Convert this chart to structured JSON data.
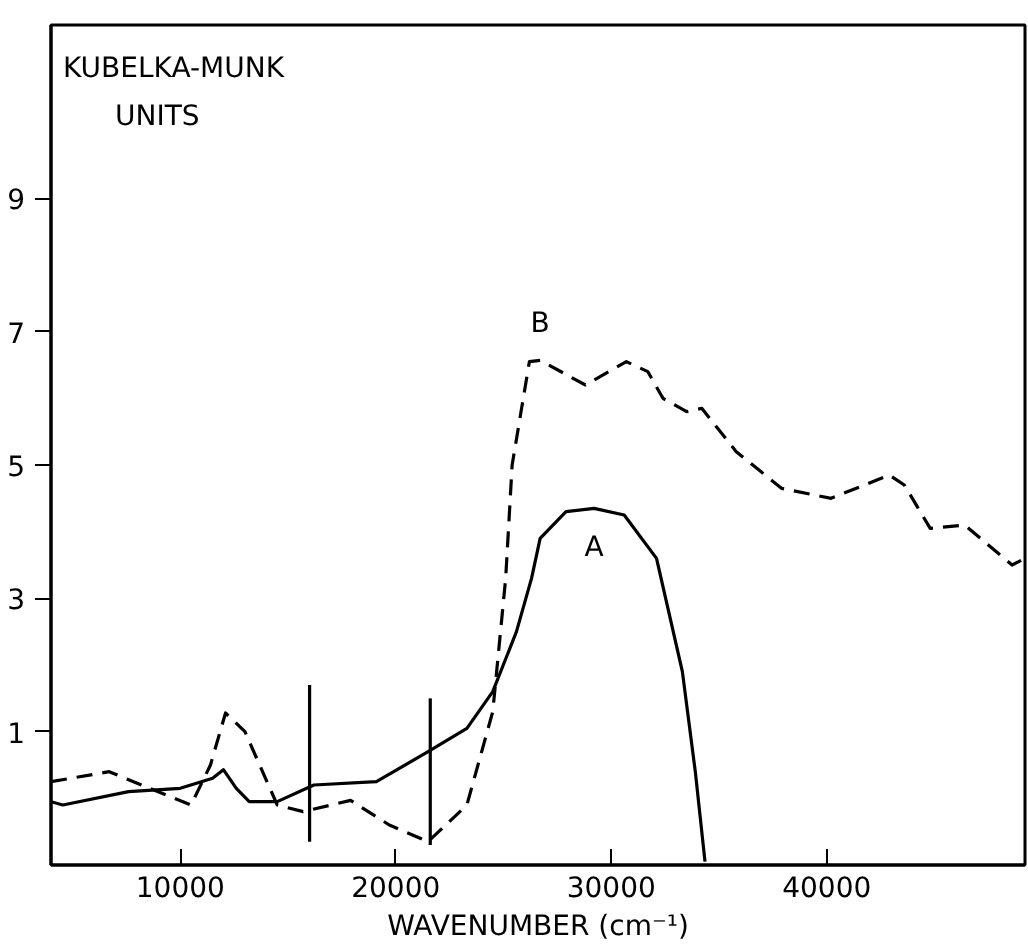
{
  "chart_data": {
    "type": "line",
    "xlabel": "WAVENUMBER (cm⁻¹)",
    "ylabel": "KUBELKA-MUNK UNITS",
    "xlim": [
      4000,
      49200
    ],
    "ylim": [
      -1,
      11.6
    ],
    "xticks": [
      10000,
      20000,
      30000,
      40000
    ],
    "yticks": [
      1,
      3,
      5,
      7,
      9
    ],
    "grid": false,
    "series": [
      {
        "name": "A",
        "color": "#000000",
        "line_style": "solid",
        "x": [
          4000,
          4550,
          7600,
          10000,
          11500,
          12000,
          12600,
          13200,
          14500,
          16200,
          19100,
          21500,
          23300,
          24500,
          25600,
          26300,
          26700,
          27900,
          29200,
          30600,
          32100,
          33300,
          33900,
          34350
        ],
        "values": [
          -0.05,
          -0.1,
          0.1,
          0.15,
          0.3,
          0.43,
          0.15,
          -0.05,
          -0.05,
          0.2,
          0.25,
          0.7,
          1.05,
          1.6,
          2.5,
          3.3,
          3.9,
          4.3,
          4.35,
          4.25,
          3.6,
          1.9,
          0.4,
          -0.95
        ]
      },
      {
        "name": "B",
        "color": "#000000",
        "line_style": "dashed",
        "x": [
          4000,
          6700,
          8200,
          10500,
          11400,
          12100,
          13000,
          14500,
          15700,
          17900,
          19700,
          21500,
          23300,
          24500,
          25100,
          25400,
          26200,
          26700,
          28800,
          30700,
          31700,
          32400,
          33500,
          34200,
          35800,
          37900,
          40200,
          42900,
          43600,
          44800,
          46400,
          48600,
          49200
        ],
        "values": [
          0.25,
          0.4,
          0.2,
          -0.1,
          0.5,
          1.28,
          1.0,
          -0.1,
          -0.2,
          -0.03,
          -0.4,
          -0.65,
          -0.1,
          1.3,
          3.3,
          5.0,
          6.55,
          6.57,
          6.2,
          6.55,
          6.4,
          6.0,
          5.8,
          5.85,
          5.2,
          4.65,
          4.5,
          4.85,
          4.7,
          4.05,
          4.1,
          3.5,
          3.6
        ]
      },
      {
        "color": "#000000",
        "line_style": "solid",
        "x": [
          16000,
          16000
        ],
        "values": [
          -0.65,
          1.7
        ]
      },
      {
        "color": "#000000",
        "line_style": "solid",
        "x": [
          21600,
          21600
        ],
        "values": [
          -0.7,
          1.5
        ]
      }
    ]
  }
}
